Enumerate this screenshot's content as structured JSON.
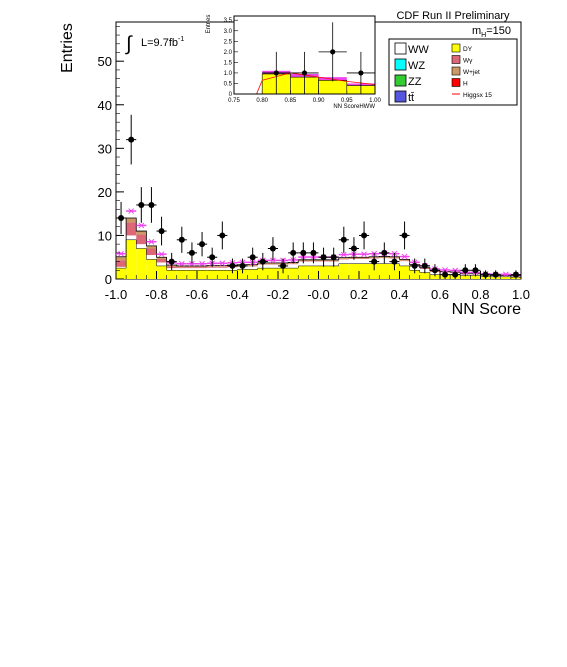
{
  "header": {
    "experiment": "CDF Run II Preliminary",
    "mass_label": "m",
    "mass_sub": "H",
    "mass_value": "=150",
    "lumi_label": "L=9.7fb",
    "lumi_exp": "-1"
  },
  "legend": [
    {
      "key": "WW",
      "label": "WW",
      "color": "#ffffff",
      "sup": ""
    },
    {
      "key": "WZ",
      "label": "WZ",
      "color": "#00ffff",
      "sup": ""
    },
    {
      "key": "ZZ",
      "label": "ZZ",
      "color": "#33cc33",
      "sup": ""
    },
    {
      "key": "tt",
      "label": "t",
      "color": "#5555dd",
      "sup": "t̄"
    },
    {
      "key": "DY",
      "label": "DY",
      "color": "#ffff00",
      "sup": ""
    },
    {
      "key": "Wg",
      "label": "Wγ",
      "color": "#dd6677",
      "sup": ""
    },
    {
      "key": "Wjet",
      "label": "W+jet",
      "color": "#cc9966",
      "sup": ""
    },
    {
      "key": "H",
      "label": "H",
      "color": "#ff0000",
      "sup": ""
    },
    {
      "key": "Higgs",
      "label": "Higgsx 15",
      "color": "#ff0000",
      "sup": ""
    }
  ],
  "chart_data": [
    {
      "type": "bar",
      "xlabel": "NN Score",
      "ylabel": "Entries",
      "xlim": [
        -1.0,
        1.0
      ],
      "ylim": [
        0,
        59
      ],
      "xticks": [
        "-1.0",
        "-0.8",
        "-0.6",
        "-0.4",
        "-0.2",
        "-0.0",
        "0.2",
        "0.4",
        "0.6",
        "0.8",
        "1.0"
      ],
      "yticks": [
        "0",
        "10",
        "20",
        "30",
        "40",
        "50"
      ],
      "bin_edges": [
        -1.0,
        -0.95,
        -0.9,
        -0.85,
        -0.8,
        -0.75,
        -0.7,
        -0.65,
        -0.6,
        -0.55,
        -0.5,
        -0.45,
        -0.4,
        -0.35,
        -0.3,
        -0.25,
        -0.2,
        -0.15,
        -0.1,
        -0.05,
        0.0,
        0.05,
        0.1,
        0.15,
        0.2,
        0.25,
        0.3,
        0.35,
        0.4,
        0.45,
        0.5,
        0.55,
        0.6,
        0.65,
        0.7,
        0.75,
        0.8,
        0.85,
        0.9,
        0.95,
        1.0
      ],
      "data": {
        "x": [
          -0.975,
          -0.925,
          -0.875,
          -0.825,
          -0.775,
          -0.725,
          -0.675,
          -0.625,
          -0.575,
          -0.525,
          -0.475,
          -0.425,
          -0.375,
          -0.325,
          -0.275,
          -0.225,
          -0.175,
          -0.125,
          -0.075,
          -0.025,
          0.025,
          0.075,
          0.125,
          0.175,
          0.225,
          0.275,
          0.325,
          0.375,
          0.425,
          0.475,
          0.525,
          0.575,
          0.625,
          0.675,
          0.725,
          0.775,
          0.825,
          0.875,
          0.925,
          0.975
        ],
        "y": [
          14,
          32,
          17,
          17,
          11,
          4,
          9,
          6,
          8,
          5,
          10,
          3,
          3,
          5,
          4,
          7,
          3,
          6,
          6,
          6,
          5,
          5,
          9,
          7,
          10,
          4,
          6,
          4,
          10,
          3,
          3,
          2,
          1,
          1,
          2,
          2,
          1,
          1,
          0,
          1
        ],
        "yerr": [
          3.7,
          5.7,
          4.1,
          4.1,
          3.3,
          2.0,
          3.0,
          2.4,
          2.8,
          2.2,
          3.2,
          1.7,
          1.7,
          2.2,
          2.0,
          2.6,
          1.7,
          2.4,
          2.4,
          2.4,
          2.2,
          2.2,
          3.0,
          2.6,
          3.2,
          2.0,
          2.4,
          2.0,
          3.2,
          1.7,
          1.7,
          1.4,
          1.0,
          1.0,
          1.4,
          1.4,
          1.0,
          1.0,
          0,
          1.0
        ]
      },
      "stack": [
        {
          "name": "DY",
          "color": "#ffff00",
          "values": [
            2.5,
            9.0,
            7.0,
            4.5,
            3.0,
            2.0,
            2.0,
            2.0,
            2.0,
            2.0,
            2.0,
            2.0,
            2.2,
            2.2,
            2.5,
            2.5,
            2.5,
            2.5,
            3.0,
            3.0,
            3.0,
            3.0,
            3.5,
            3.5,
            3.5,
            3.5,
            3.5,
            3.5,
            3.0,
            2.0,
            1.5,
            1.0,
            1.0,
            1.0,
            0.8,
            0.8,
            0.6,
            0.5,
            0.5,
            0.4
          ]
        },
        {
          "name": "WW",
          "color": "#ffffff",
          "values": [
            0.3,
            1.0,
            1.0,
            1.0,
            0.8,
            0.5,
            0.5,
            0.5,
            0.5,
            0.6,
            0.6,
            0.7,
            0.7,
            0.7,
            0.8,
            0.8,
            0.8,
            0.9,
            1.0,
            1.0,
            1.0,
            1.0,
            1.0,
            1.1,
            1.1,
            1.2,
            1.3,
            1.2,
            1.1,
            1.0,
            0.8,
            0.6,
            0.5,
            0.4,
            0.3,
            0.3,
            0.2,
            0.2,
            0.2,
            0.2
          ]
        },
        {
          "name": "Wγ",
          "color": "#dd6677",
          "values": [
            1.5,
            3.0,
            2.2,
            1.5,
            0.8,
            0.4,
            0.2,
            0.2,
            0.2,
            0.2,
            0.2,
            0.2,
            0.1,
            0.1,
            0.1,
            0.1,
            0.1,
            0.1,
            0.1,
            0.1,
            0.1,
            0.1,
            0.1,
            0.1,
            0.1,
            0.1,
            0.1,
            0.1,
            0.1,
            0.1,
            0.1,
            0.1,
            0.1,
            0.1,
            0.0,
            0.0,
            0.0,
            0.0,
            0.0,
            0.0
          ]
        },
        {
          "name": "W+jet",
          "color": "#cc9966",
          "values": [
            0.8,
            1.0,
            0.8,
            0.6,
            0.4,
            0.3,
            0.3,
            0.3,
            0.3,
            0.3,
            0.3,
            0.3,
            0.3,
            0.3,
            0.3,
            0.3,
            0.3,
            0.3,
            0.3,
            0.3,
            0.3,
            0.3,
            0.3,
            0.3,
            0.3,
            0.3,
            0.3,
            0.3,
            0.3,
            0.2,
            0.2,
            0.2,
            0.1,
            0.1,
            0.1,
            0.1,
            0.1,
            0.1,
            0.1,
            0.1
          ]
        },
        {
          "name": "H",
          "color": "#ff0000",
          "values": [
            0.0,
            0.0,
            0.0,
            0.0,
            0.0,
            0.0,
            0.0,
            0.0,
            0.0,
            0.0,
            0.0,
            0.0,
            0.0,
            0.0,
            0.0,
            0.0,
            0.0,
            0.0,
            0.0,
            0.0,
            0.0,
            0.0,
            0.0,
            0.0,
            0.0,
            0.0,
            0.0,
            0.0,
            0.0,
            0.0,
            0.0,
            0.0,
            0.0,
            0.0,
            0.0,
            0.0,
            0.0,
            0.0,
            0.0,
            0.0
          ]
        }
      ],
      "uncertainty_band_color": "#ee44ee",
      "legend_position": "top-right"
    },
    {
      "type": "bar",
      "xlabel": "NN ScoreHWW",
      "ylabel": "Entries",
      "xlim": [
        0.75,
        1.0
      ],
      "ylim": [
        0,
        3.7
      ],
      "xticks": [
        "0.75",
        "0.80",
        "0.85",
        "0.90",
        "0.95",
        "1.00"
      ],
      "yticks": [
        "0",
        "0.5",
        "1.0",
        "1.5",
        "2.0",
        "2.5",
        "3.0",
        "3.5"
      ],
      "bin_edges": [
        0.75,
        0.8,
        0.85,
        0.9,
        0.95,
        1.0
      ],
      "data": {
        "x": [
          0.775,
          0.825,
          0.875,
          0.925,
          0.975
        ],
        "y": [
          0,
          1,
          1,
          2,
          1
        ],
        "yerr": [
          0,
          1.0,
          1.0,
          1.4,
          1.0
        ]
      },
      "stack_total": [
        0.0,
        0.95,
        0.8,
        0.65,
        0.4
      ],
      "band_high": [
        0.0,
        1.1,
        0.95,
        0.8,
        0.5
      ],
      "signal_points": [
        [
          0.79,
          0.0
        ],
        [
          0.8,
          0.65
        ],
        [
          0.85,
          1.0
        ],
        [
          0.9,
          0.8
        ],
        [
          0.95,
          0.6
        ],
        [
          1.0,
          0.45
        ]
      ],
      "uncertainty_band_color": "#ee44ee"
    }
  ]
}
